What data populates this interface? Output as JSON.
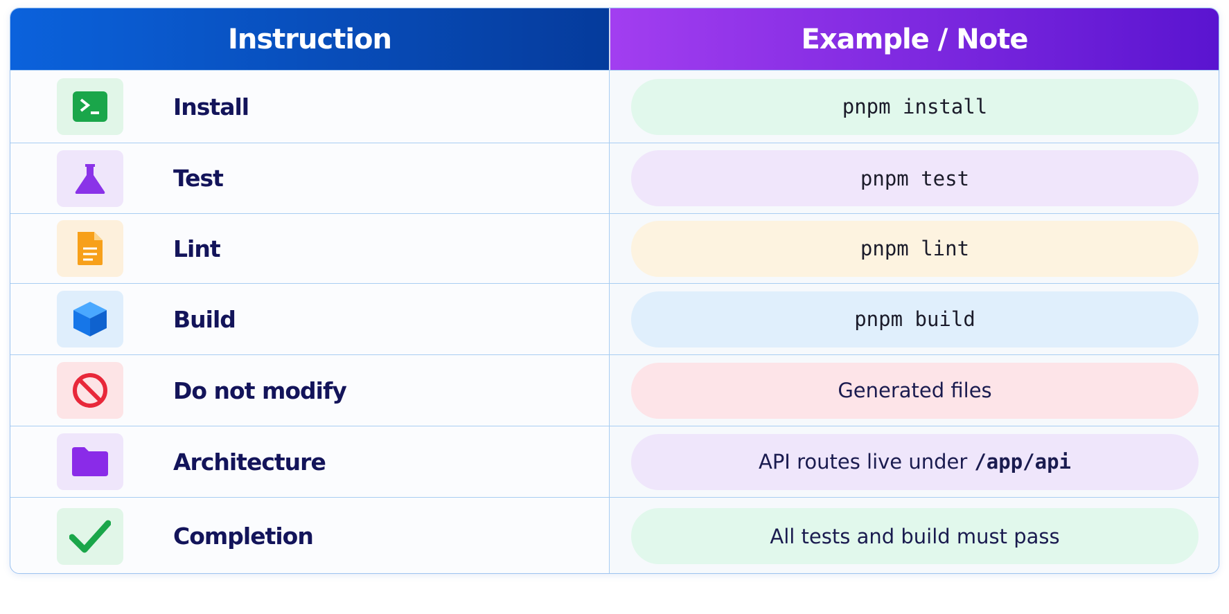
{
  "header": {
    "columns": [
      "Instruction",
      "Example / Note"
    ]
  },
  "table": {
    "rows": [
      {
        "label": "Install",
        "note": "pnpm install"
      },
      {
        "label": "Test",
        "note": "pnpm test"
      },
      {
        "label": "Lint",
        "note": "pnpm lint"
      },
      {
        "label": "Build",
        "note": "pnpm build"
      },
      {
        "label": "Do not modify",
        "note": "Generated  files"
      },
      {
        "label": "Architecture",
        "note": "API routes live under",
        "code": "/app/api"
      },
      {
        "label": "Completion",
        "note": "All tests and build must pass"
      }
    ]
  }
}
